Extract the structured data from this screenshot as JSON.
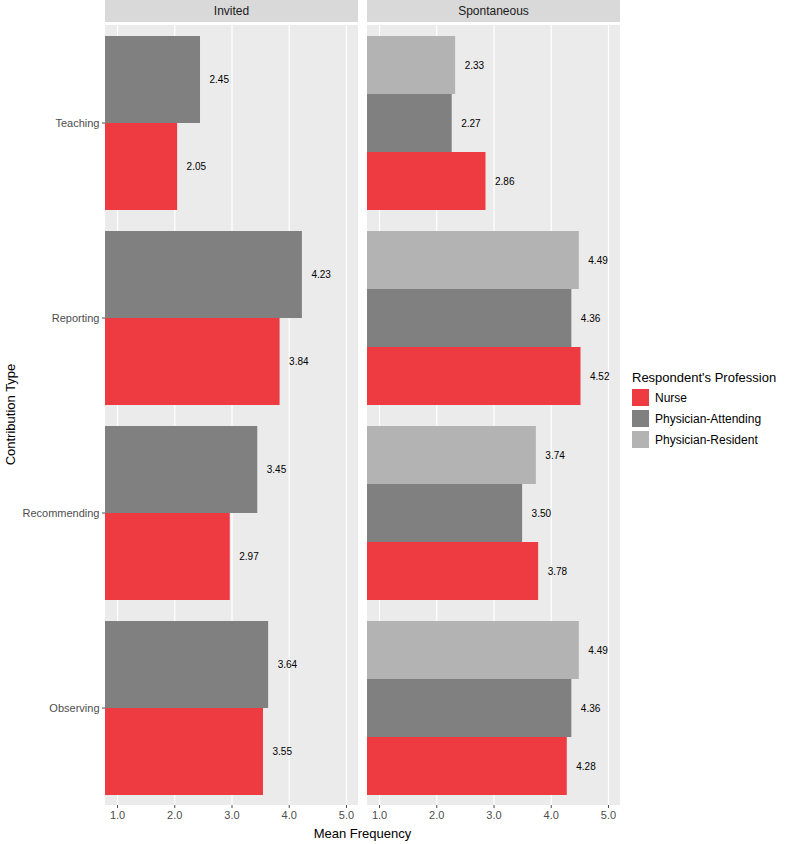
{
  "chart_data": {
    "type": "bar",
    "orientation": "horizontal",
    "x_label": "Mean Frequency",
    "y_label": "Contribution Type",
    "legend_title": "Respondent's Profession",
    "legend": "right",
    "grid": true,
    "data_labels": true,
    "xlim": [
      0.79,
      5.21
    ],
    "xticks": [
      1,
      2,
      3,
      4,
      5
    ],
    "categories": [
      "Teaching",
      "Reporting",
      "Recommending",
      "Observing"
    ],
    "panels": [
      {
        "title": "Invited",
        "series": [
          {
            "name": "Nurse",
            "color": "#EE3A41",
            "values": [
              2.05,
              3.84,
              2.97,
              3.55
            ],
            "value_labels": [
              "2.05",
              "3.84",
              "2.97",
              "3.55"
            ]
          },
          {
            "name": "Physician-Attending",
            "color": "#808080",
            "values": [
              2.45,
              4.23,
              3.45,
              3.64
            ],
            "value_labels": [
              "2.45",
              "4.23",
              "3.45",
              "3.64"
            ]
          },
          {
            "name": "Physician-Resident",
            "color": "#B3B3B3",
            "values": [
              null,
              null,
              null,
              null
            ],
            "value_labels": [
              null,
              null,
              null,
              null
            ]
          }
        ]
      },
      {
        "title": "Spontaneous",
        "series": [
          {
            "name": "Nurse",
            "color": "#EE3A41",
            "values": [
              2.86,
              4.52,
              3.78,
              4.28
            ],
            "value_labels": [
              "2.86",
              "4.52",
              "3.78",
              "4.28"
            ]
          },
          {
            "name": "Physician-Attending",
            "color": "#808080",
            "values": [
              2.27,
              4.36,
              3.5,
              4.36
            ],
            "value_labels": [
              "2.27",
              "4.36",
              "3.50",
              "4.36"
            ]
          },
          {
            "name": "Physician-Resident",
            "color": "#B3B3B3",
            "values": [
              2.33,
              4.49,
              3.74,
              4.49
            ],
            "value_labels": [
              "2.33",
              "4.49",
              "3.74",
              "4.49"
            ]
          }
        ]
      }
    ]
  }
}
